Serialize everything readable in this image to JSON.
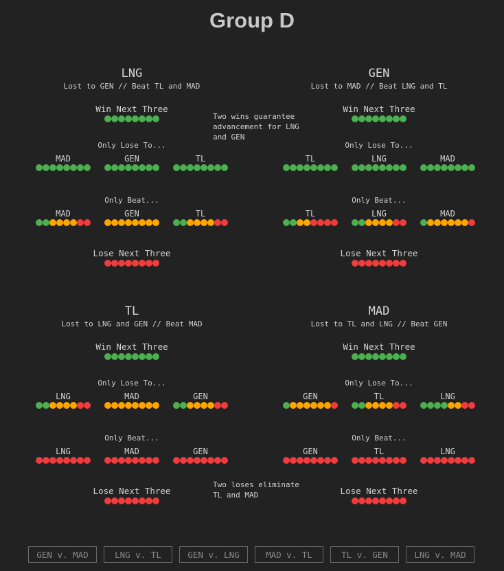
{
  "title": "Group D",
  "colors": {
    "win": "#4caf50",
    "partial": "#ffa500",
    "loss": "#f03c3c"
  },
  "teams": [
    {
      "name": "LNG",
      "record": "Lost to GEN // Beat TL and MAD",
      "win_label": "Win Next Three",
      "win_dots": [
        "g",
        "g",
        "g",
        "g",
        "g",
        "g",
        "g",
        "g"
      ],
      "lose_to_label": "Only Lose To...",
      "lose_to": [
        {
          "opp": "MAD",
          "dots": [
            "g",
            "g",
            "g",
            "g",
            "g",
            "g",
            "g",
            "g"
          ]
        },
        {
          "opp": "GEN",
          "dots": [
            "g",
            "g",
            "g",
            "g",
            "g",
            "g",
            "g",
            "g"
          ]
        },
        {
          "opp": "TL",
          "dots": [
            "g",
            "g",
            "g",
            "g",
            "g",
            "g",
            "g",
            "g"
          ]
        }
      ],
      "beat_label": "Only Beat...",
      "beat": [
        {
          "opp": "MAD",
          "dots": [
            "g",
            "g",
            "o",
            "o",
            "o",
            "o",
            "r",
            "r"
          ]
        },
        {
          "opp": "GEN",
          "dots": [
            "o",
            "o",
            "o",
            "o",
            "o",
            "o",
            "o",
            "o"
          ]
        },
        {
          "opp": "TL",
          "dots": [
            "g",
            "g",
            "o",
            "o",
            "o",
            "o",
            "r",
            "r"
          ]
        }
      ],
      "lose_label": "Lose Next Three",
      "lose_dots": [
        "r",
        "r",
        "r",
        "r",
        "r",
        "r",
        "r",
        "r"
      ]
    },
    {
      "name": "GEN",
      "record": "Lost to MAD // Beat LNG and TL",
      "win_label": "Win Next Three",
      "win_dots": [
        "g",
        "g",
        "g",
        "g",
        "g",
        "g",
        "g",
        "g"
      ],
      "lose_to_label": "Only Lose To...",
      "lose_to": [
        {
          "opp": "TL",
          "dots": [
            "g",
            "g",
            "g",
            "g",
            "g",
            "g",
            "g",
            "g"
          ]
        },
        {
          "opp": "LNG",
          "dots": [
            "g",
            "g",
            "g",
            "g",
            "g",
            "g",
            "g",
            "g"
          ]
        },
        {
          "opp": "MAD",
          "dots": [
            "g",
            "g",
            "g",
            "g",
            "g",
            "g",
            "g",
            "g"
          ]
        }
      ],
      "beat_label": "Only Beat...",
      "beat": [
        {
          "opp": "TL",
          "dots": [
            "g",
            "g",
            "o",
            "o",
            "r",
            "r",
            "r",
            "r"
          ]
        },
        {
          "opp": "LNG",
          "dots": [
            "g",
            "g",
            "o",
            "o",
            "o",
            "o",
            "r",
            "r"
          ]
        },
        {
          "opp": "MAD",
          "dots": [
            "g",
            "o",
            "o",
            "o",
            "o",
            "o",
            "o",
            "r"
          ]
        }
      ],
      "lose_label": "Lose Next Three",
      "lose_dots": [
        "r",
        "r",
        "r",
        "r",
        "r",
        "r",
        "r",
        "r"
      ]
    },
    {
      "name": "TL",
      "record": "Lost to LNG and GEN // Beat MAD",
      "win_label": "Win Next Three",
      "win_dots": [
        "g",
        "g",
        "g",
        "g",
        "g",
        "g",
        "g",
        "g"
      ],
      "lose_to_label": "Only Lose To...",
      "lose_to": [
        {
          "opp": "LNG",
          "dots": [
            "g",
            "g",
            "o",
            "o",
            "o",
            "o",
            "r",
            "r"
          ]
        },
        {
          "opp": "MAD",
          "dots": [
            "o",
            "o",
            "o",
            "o",
            "o",
            "o",
            "o",
            "o"
          ]
        },
        {
          "opp": "GEN",
          "dots": [
            "g",
            "g",
            "o",
            "o",
            "o",
            "o",
            "r",
            "r"
          ]
        }
      ],
      "beat_label": "Only Beat...",
      "beat": [
        {
          "opp": "LNG",
          "dots": [
            "r",
            "r",
            "r",
            "r",
            "r",
            "r",
            "r",
            "r"
          ]
        },
        {
          "opp": "MAD",
          "dots": [
            "r",
            "r",
            "r",
            "r",
            "r",
            "r",
            "r",
            "r"
          ]
        },
        {
          "opp": "GEN",
          "dots": [
            "r",
            "r",
            "r",
            "r",
            "r",
            "r",
            "r",
            "r"
          ]
        }
      ],
      "lose_label": "Lose Next Three",
      "lose_dots": [
        "r",
        "r",
        "r",
        "r",
        "r",
        "r",
        "r",
        "r"
      ]
    },
    {
      "name": "MAD",
      "record": "Lost to TL and LNG // Beat GEN",
      "win_label": "Win Next Three",
      "win_dots": [
        "g",
        "g",
        "g",
        "g",
        "g",
        "g",
        "g",
        "g"
      ],
      "lose_to_label": "Only Lose To...",
      "lose_to": [
        {
          "opp": "GEN",
          "dots": [
            "g",
            "o",
            "o",
            "o",
            "o",
            "o",
            "o",
            "r"
          ]
        },
        {
          "opp": "TL",
          "dots": [
            "g",
            "g",
            "o",
            "o",
            "o",
            "o",
            "r",
            "r"
          ]
        },
        {
          "opp": "LNG",
          "dots": [
            "g",
            "g",
            "g",
            "g",
            "o",
            "o",
            "r",
            "r"
          ]
        }
      ],
      "beat_label": "Only Beat...",
      "beat": [
        {
          "opp": "GEN",
          "dots": [
            "r",
            "r",
            "r",
            "r",
            "r",
            "r",
            "r",
            "r"
          ]
        },
        {
          "opp": "TL",
          "dots": [
            "r",
            "r",
            "r",
            "r",
            "r",
            "r",
            "r",
            "r"
          ]
        },
        {
          "opp": "LNG",
          "dots": [
            "r",
            "r",
            "r",
            "r",
            "r",
            "r",
            "r",
            "r"
          ]
        }
      ],
      "lose_label": "Lose Next Three",
      "lose_dots": [
        "r",
        "r",
        "r",
        "r",
        "r",
        "r",
        "r",
        "r"
      ]
    }
  ],
  "notes": {
    "advance": "Two wins guarantee advancement for LNG and GEN",
    "eliminate": "Two loses eliminate TL and MAD"
  },
  "matches": [
    "GEN v. MAD",
    "LNG v. TL",
    "GEN v. LNG",
    "MAD v. TL",
    "TL v. GEN",
    "LNG v. MAD"
  ]
}
